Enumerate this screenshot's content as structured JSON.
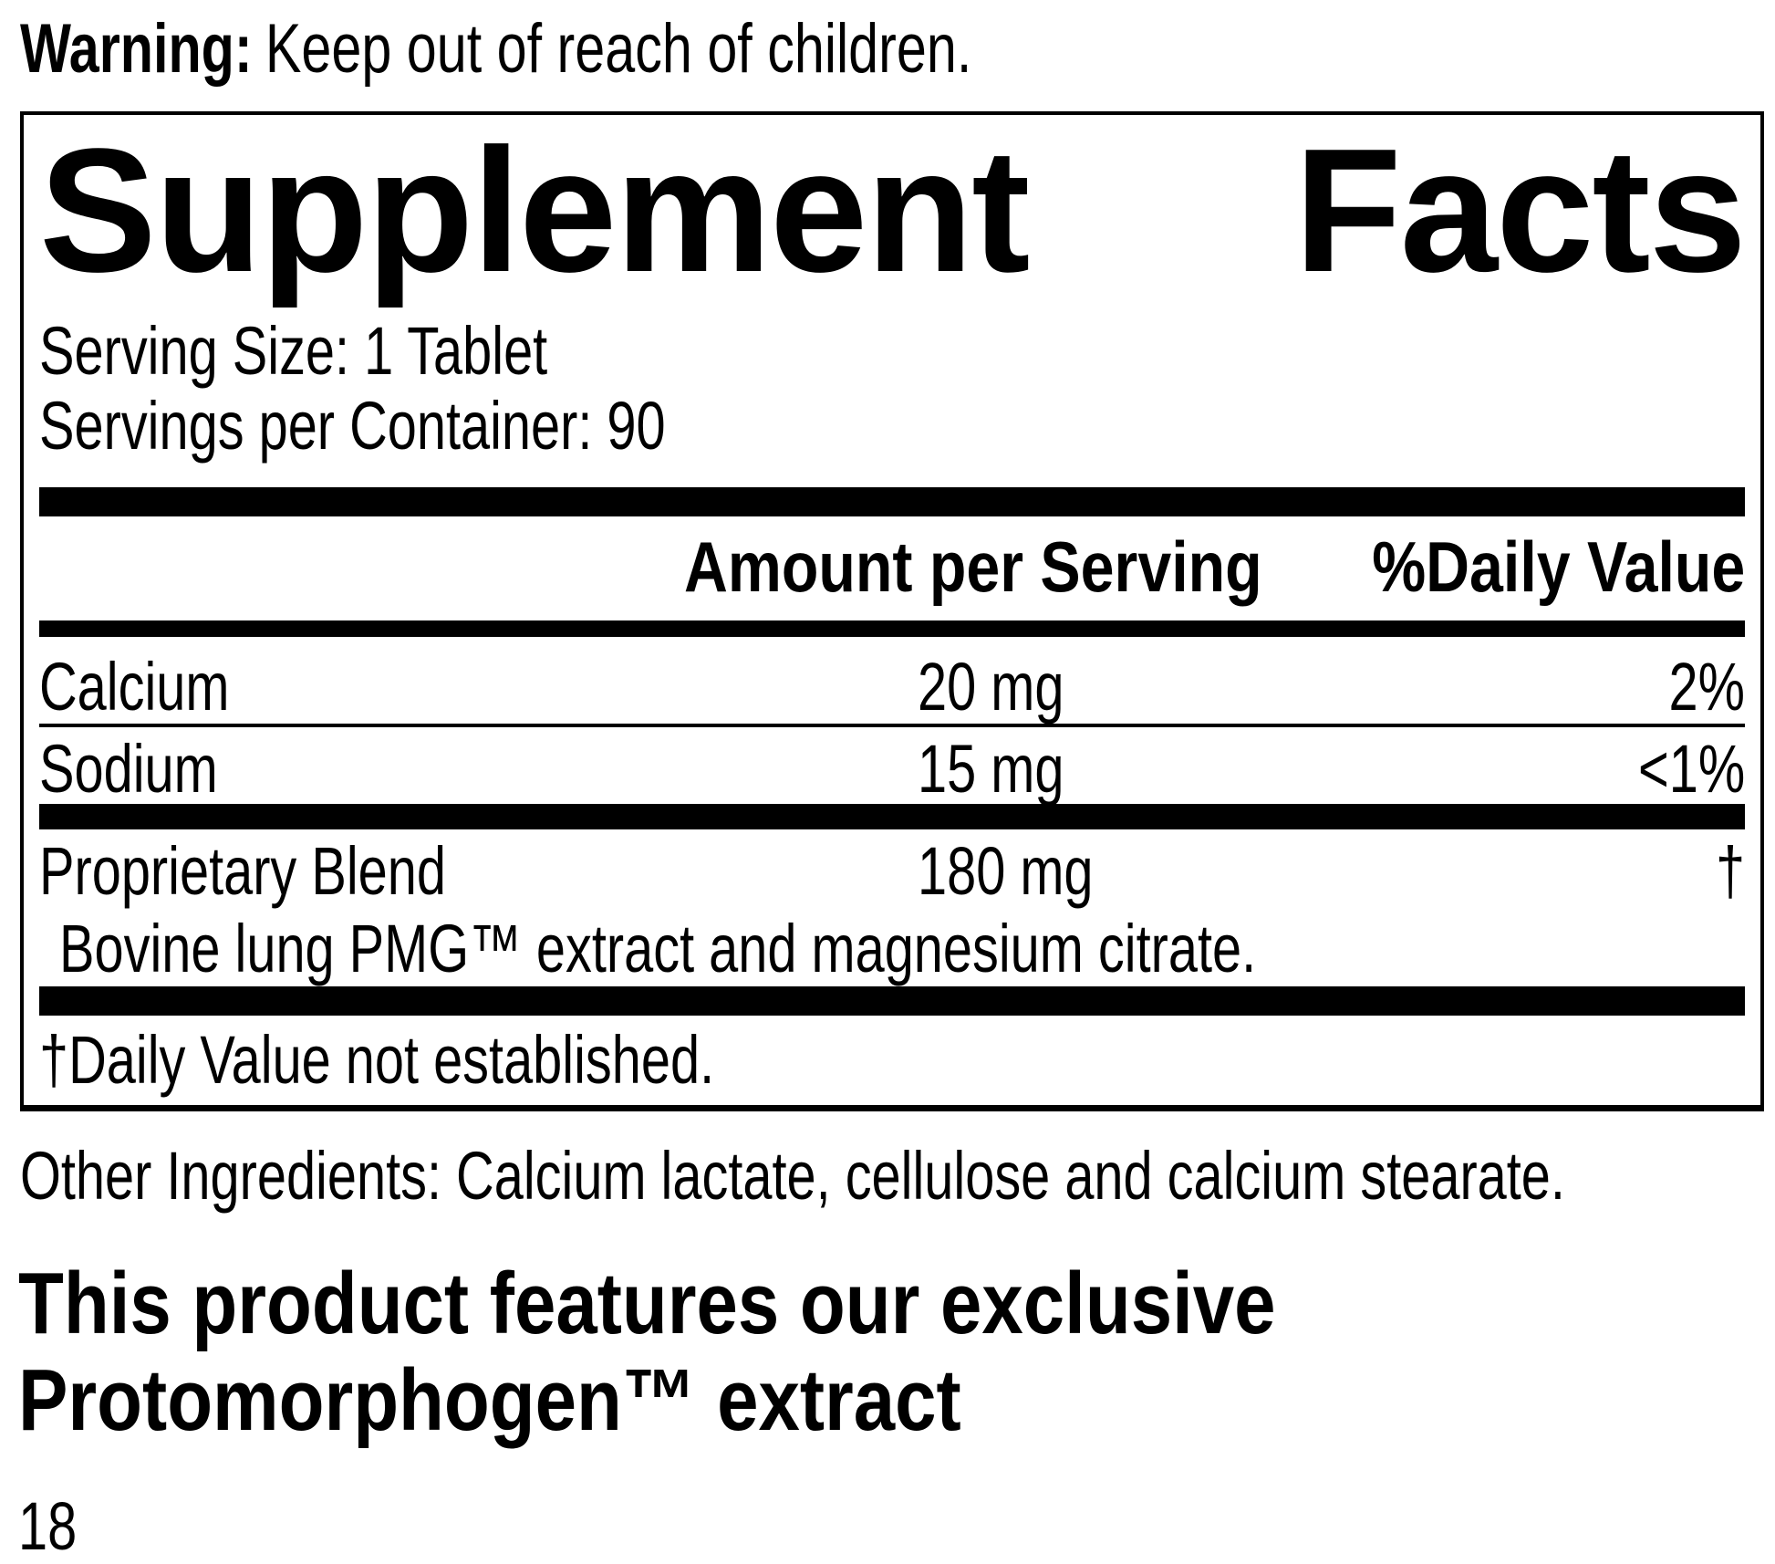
{
  "warning": {
    "label": "Warning:",
    "text": "Keep out of reach of children."
  },
  "panel": {
    "title_word1": "Supplement",
    "title_word2": "Facts",
    "serving_size": "Serving Size: 1 Tablet",
    "servings_per_container": "Servings per Container: 90",
    "columns": {
      "amount": "Amount per Serving",
      "daily_value": "%Daily Value"
    },
    "rows": [
      {
        "name": "Calcium",
        "amount": "20 mg",
        "dv": "2%"
      },
      {
        "name": "Sodium",
        "amount": "15 mg",
        "dv": "<1%"
      },
      {
        "name": "Proprietary Blend",
        "amount": "180 mg",
        "dv": "†",
        "description": "Bovine lung PMG™ extract and magnesium citrate."
      }
    ],
    "footnote": "†Daily Value not established."
  },
  "other_ingredients": "Other Ingredients: Calcium lactate, cellulose and calcium stearate.",
  "feature": {
    "line1": "This product features our exclusive",
    "line2": "Protomorphogen™ extract"
  },
  "page_number": "18",
  "colors": {
    "ink": "#000000",
    "paper": "#ffffff"
  }
}
